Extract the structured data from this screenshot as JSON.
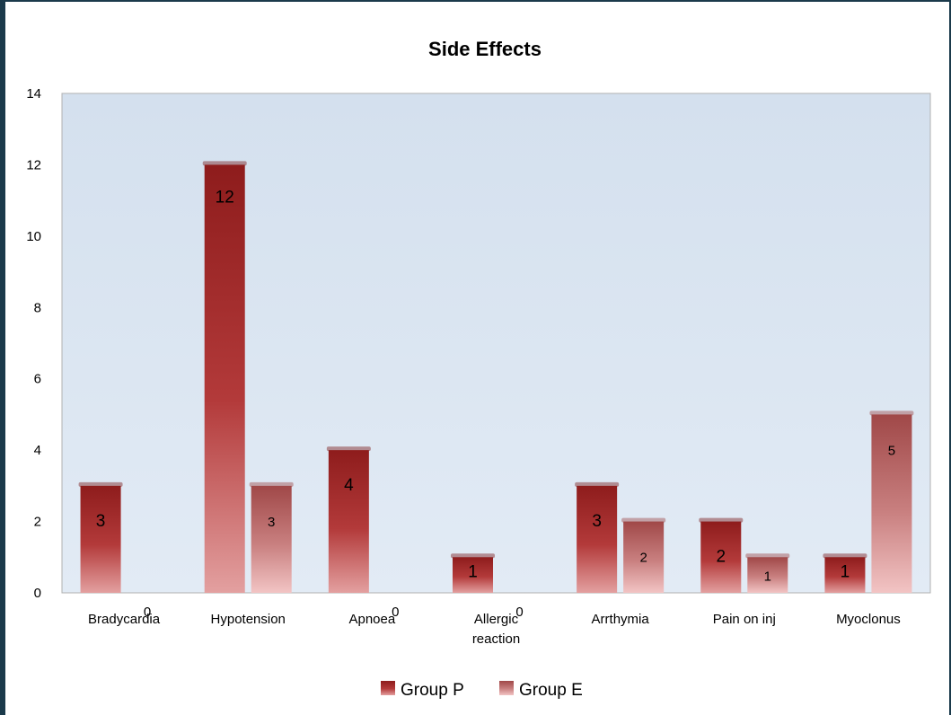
{
  "chart_data": {
    "type": "bar",
    "title": "Side Effects",
    "categories": [
      "Bradycardia",
      "Hypotension",
      "Apnoea",
      "Allergic reaction",
      "Arrthymia",
      "Pain on inj",
      "Myoclonus"
    ],
    "category_lines": [
      [
        "Bradycardia"
      ],
      [
        "Hypotension"
      ],
      [
        "Apnoea"
      ],
      [
        "Allergic",
        "reaction"
      ],
      [
        "Arrthymia"
      ],
      [
        "Pain on inj"
      ],
      [
        "Myoclonus"
      ]
    ],
    "series": [
      {
        "name": "Group P",
        "values": [
          3,
          12,
          4,
          1,
          3,
          2,
          1
        ],
        "color": "#b03030"
      },
      {
        "name": "Group E",
        "values": [
          0,
          3,
          0,
          0,
          2,
          1,
          5
        ],
        "color": "#d98a8a"
      }
    ],
    "ylim": [
      0,
      14
    ],
    "yticks": [
      0,
      2,
      4,
      6,
      8,
      10,
      12,
      14
    ],
    "grid": false,
    "legend_position": "bottom",
    "data_labels": true,
    "plot_background": "#dce6f1"
  }
}
